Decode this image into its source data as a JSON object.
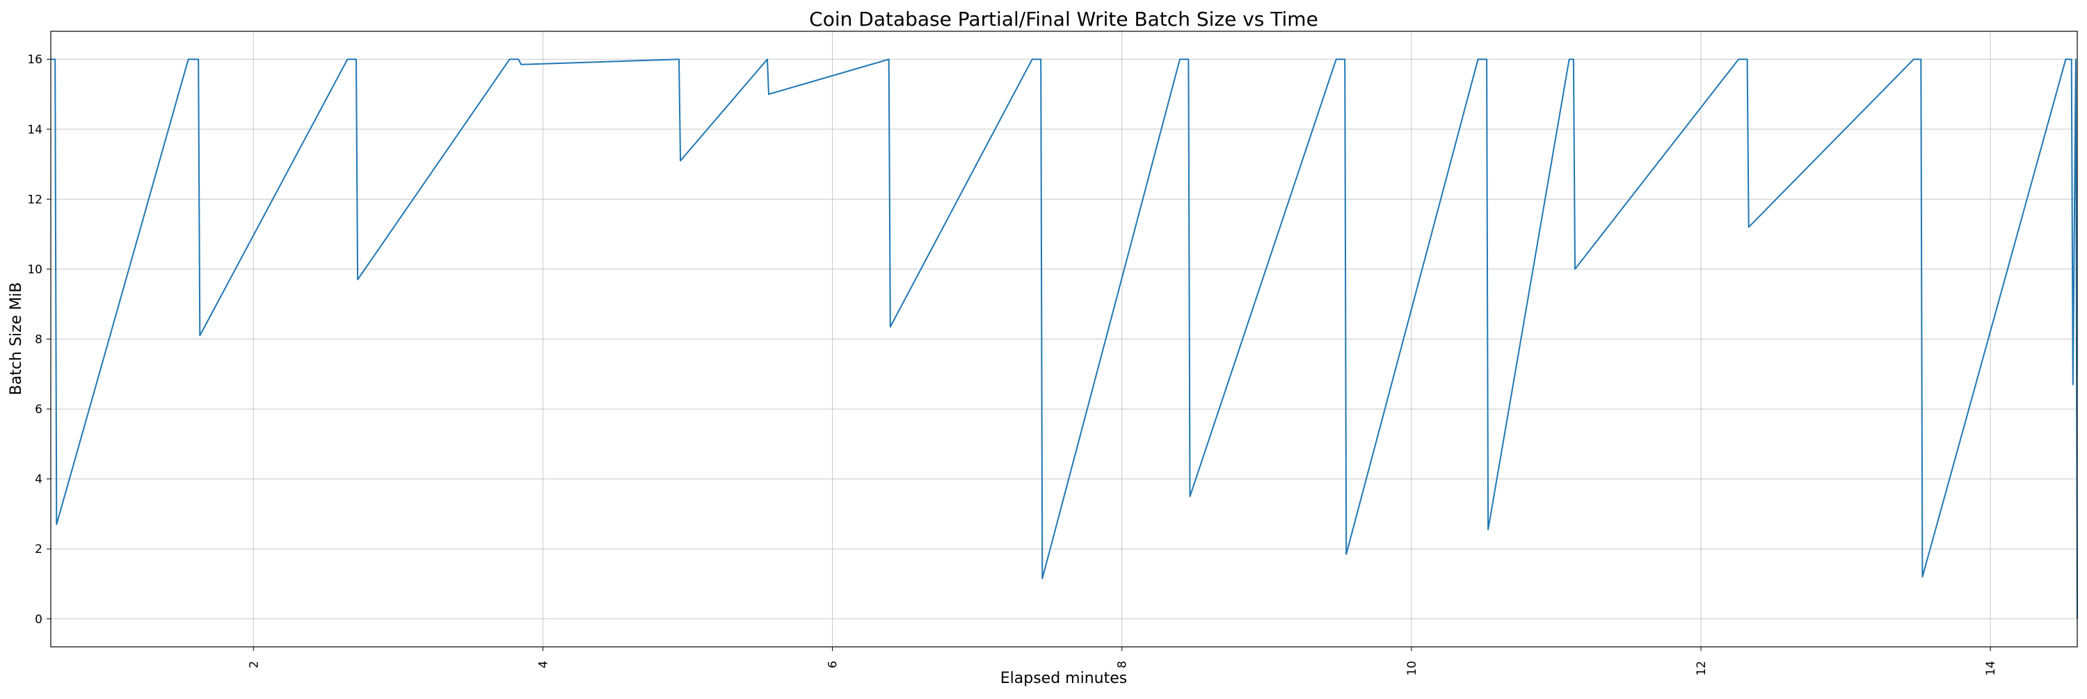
{
  "chart_data": {
    "type": "line",
    "title": "Coin Database Partial/Final Write Batch Size vs Time",
    "xlabel": "Elapsed minutes",
    "ylabel": "Batch Size MiB",
    "xlim": [
      0.6,
      14.6
    ],
    "ylim": [
      -0.8,
      16.8
    ],
    "x_ticks": [
      2,
      4,
      6,
      8,
      10,
      12,
      14
    ],
    "y_ticks": [
      0,
      2,
      4,
      6,
      8,
      10,
      12,
      14,
      16
    ],
    "grid": true,
    "legend": "none",
    "series": [
      {
        "color": "#1f77b4",
        "x": [
          0.6,
          0.63,
          0.64,
          1.55,
          1.62,
          1.63,
          2.65,
          2.71,
          2.72,
          3.77,
          3.83,
          3.85,
          4.94,
          4.95,
          5.55,
          5.56,
          6.39,
          6.4,
          7.38,
          7.44,
          7.45,
          8.4,
          8.46,
          8.47,
          9.48,
          9.54,
          9.55,
          10.46,
          10.52,
          10.53,
          11.09,
          11.12,
          11.13,
          12.26,
          12.32,
          12.33,
          13.47,
          13.52,
          13.53,
          14.52,
          14.56,
          14.57,
          14.59,
          14.6
        ],
        "y": [
          16,
          16,
          2.7,
          16,
          16,
          8.1,
          16,
          16,
          9.7,
          16,
          16,
          15.85,
          16,
          13.1,
          16,
          15.0,
          16,
          8.35,
          16,
          16,
          1.15,
          16,
          16,
          3.5,
          16,
          16,
          1.85,
          16,
          16,
          2.55,
          16,
          16,
          10.0,
          16,
          16,
          11.2,
          16,
          16,
          1.2,
          16,
          16,
          6.7,
          16,
          0
        ]
      }
    ]
  }
}
